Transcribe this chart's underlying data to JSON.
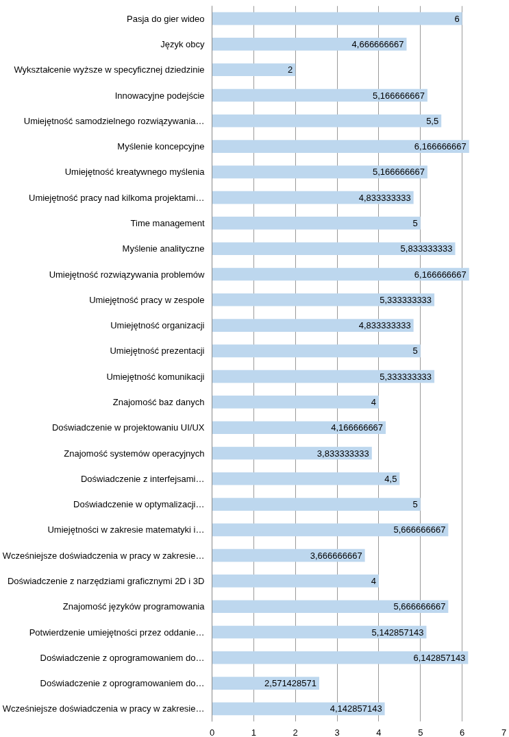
{
  "chart_data": {
    "type": "bar",
    "orientation": "horizontal",
    "color": "#bdd7ee",
    "categories": [
      "Pasja do gier wideo",
      "Język obcy",
      "Wykształcenie wyższe w specyficznej dziedzinie",
      "Innowacyjne podejście",
      "Umiejętność samodzielnego rozwiązywania…",
      "Myślenie koncepcyjne",
      "Umiejętność kreatywnego myślenia",
      "Umiejętność pracy nad kilkoma projektami…",
      "Time management",
      "Myślenie analityczne",
      "Umiejętność rozwiązywania problemów",
      "Umiejętność pracy w zespole",
      "Umiejętność organizacji",
      "Umiejętność prezentacji",
      "Umiejętność komunikacji",
      "Znajomość baz danych",
      "Doświadczenie w projektowaniu UI/UX",
      "Znajomość systemów operacyjnych",
      "Doświadczenie z interfejsami…",
      "Doświadczenie w optymalizacji…",
      "Umiejętności w zakresie matematyki i…",
      "Wcześniejsze doświadczenia w pracy w zakresie…",
      "Doświadczenie z narzędziami graficznymi 2D i 3D",
      "Znajomość języków programowania",
      "Potwierdzenie umiejętności przez oddanie…",
      "Doświadczenie z oprogramowaniem do…",
      "Doświadczenie z oprogramowaniem do…",
      "Wcześniejsze doświadczenia w pracy w zakresie…"
    ],
    "values": [
      6,
      4.666666667,
      2,
      5.166666667,
      5.5,
      6.166666667,
      5.166666667,
      4.833333333,
      5,
      5.833333333,
      6.166666667,
      5.333333333,
      4.833333333,
      5,
      5.333333333,
      4,
      4.166666667,
      3.833333333,
      4.5,
      5,
      5.666666667,
      3.666666667,
      4,
      5.666666667,
      5.142857143,
      6.142857143,
      2.571428571,
      4.142857143
    ],
    "value_labels": [
      "6",
      "4,666666667",
      "2",
      "5,166666667",
      "5,5",
      "6,166666667",
      "5,166666667",
      "4,833333333",
      "5",
      "5,833333333",
      "6,166666667",
      "5,333333333",
      "4,833333333",
      "5",
      "5,333333333",
      "4",
      "4,166666667",
      "3,833333333",
      "4,5",
      "5",
      "5,666666667",
      "3,666666667",
      "4",
      "5,666666667",
      "5,142857143",
      "6,142857143",
      "2,571428571",
      "4,142857143"
    ],
    "xlim": [
      0,
      7
    ],
    "xticks": [
      0,
      1,
      2,
      3,
      4,
      5,
      6,
      7
    ],
    "grid": "x"
  }
}
